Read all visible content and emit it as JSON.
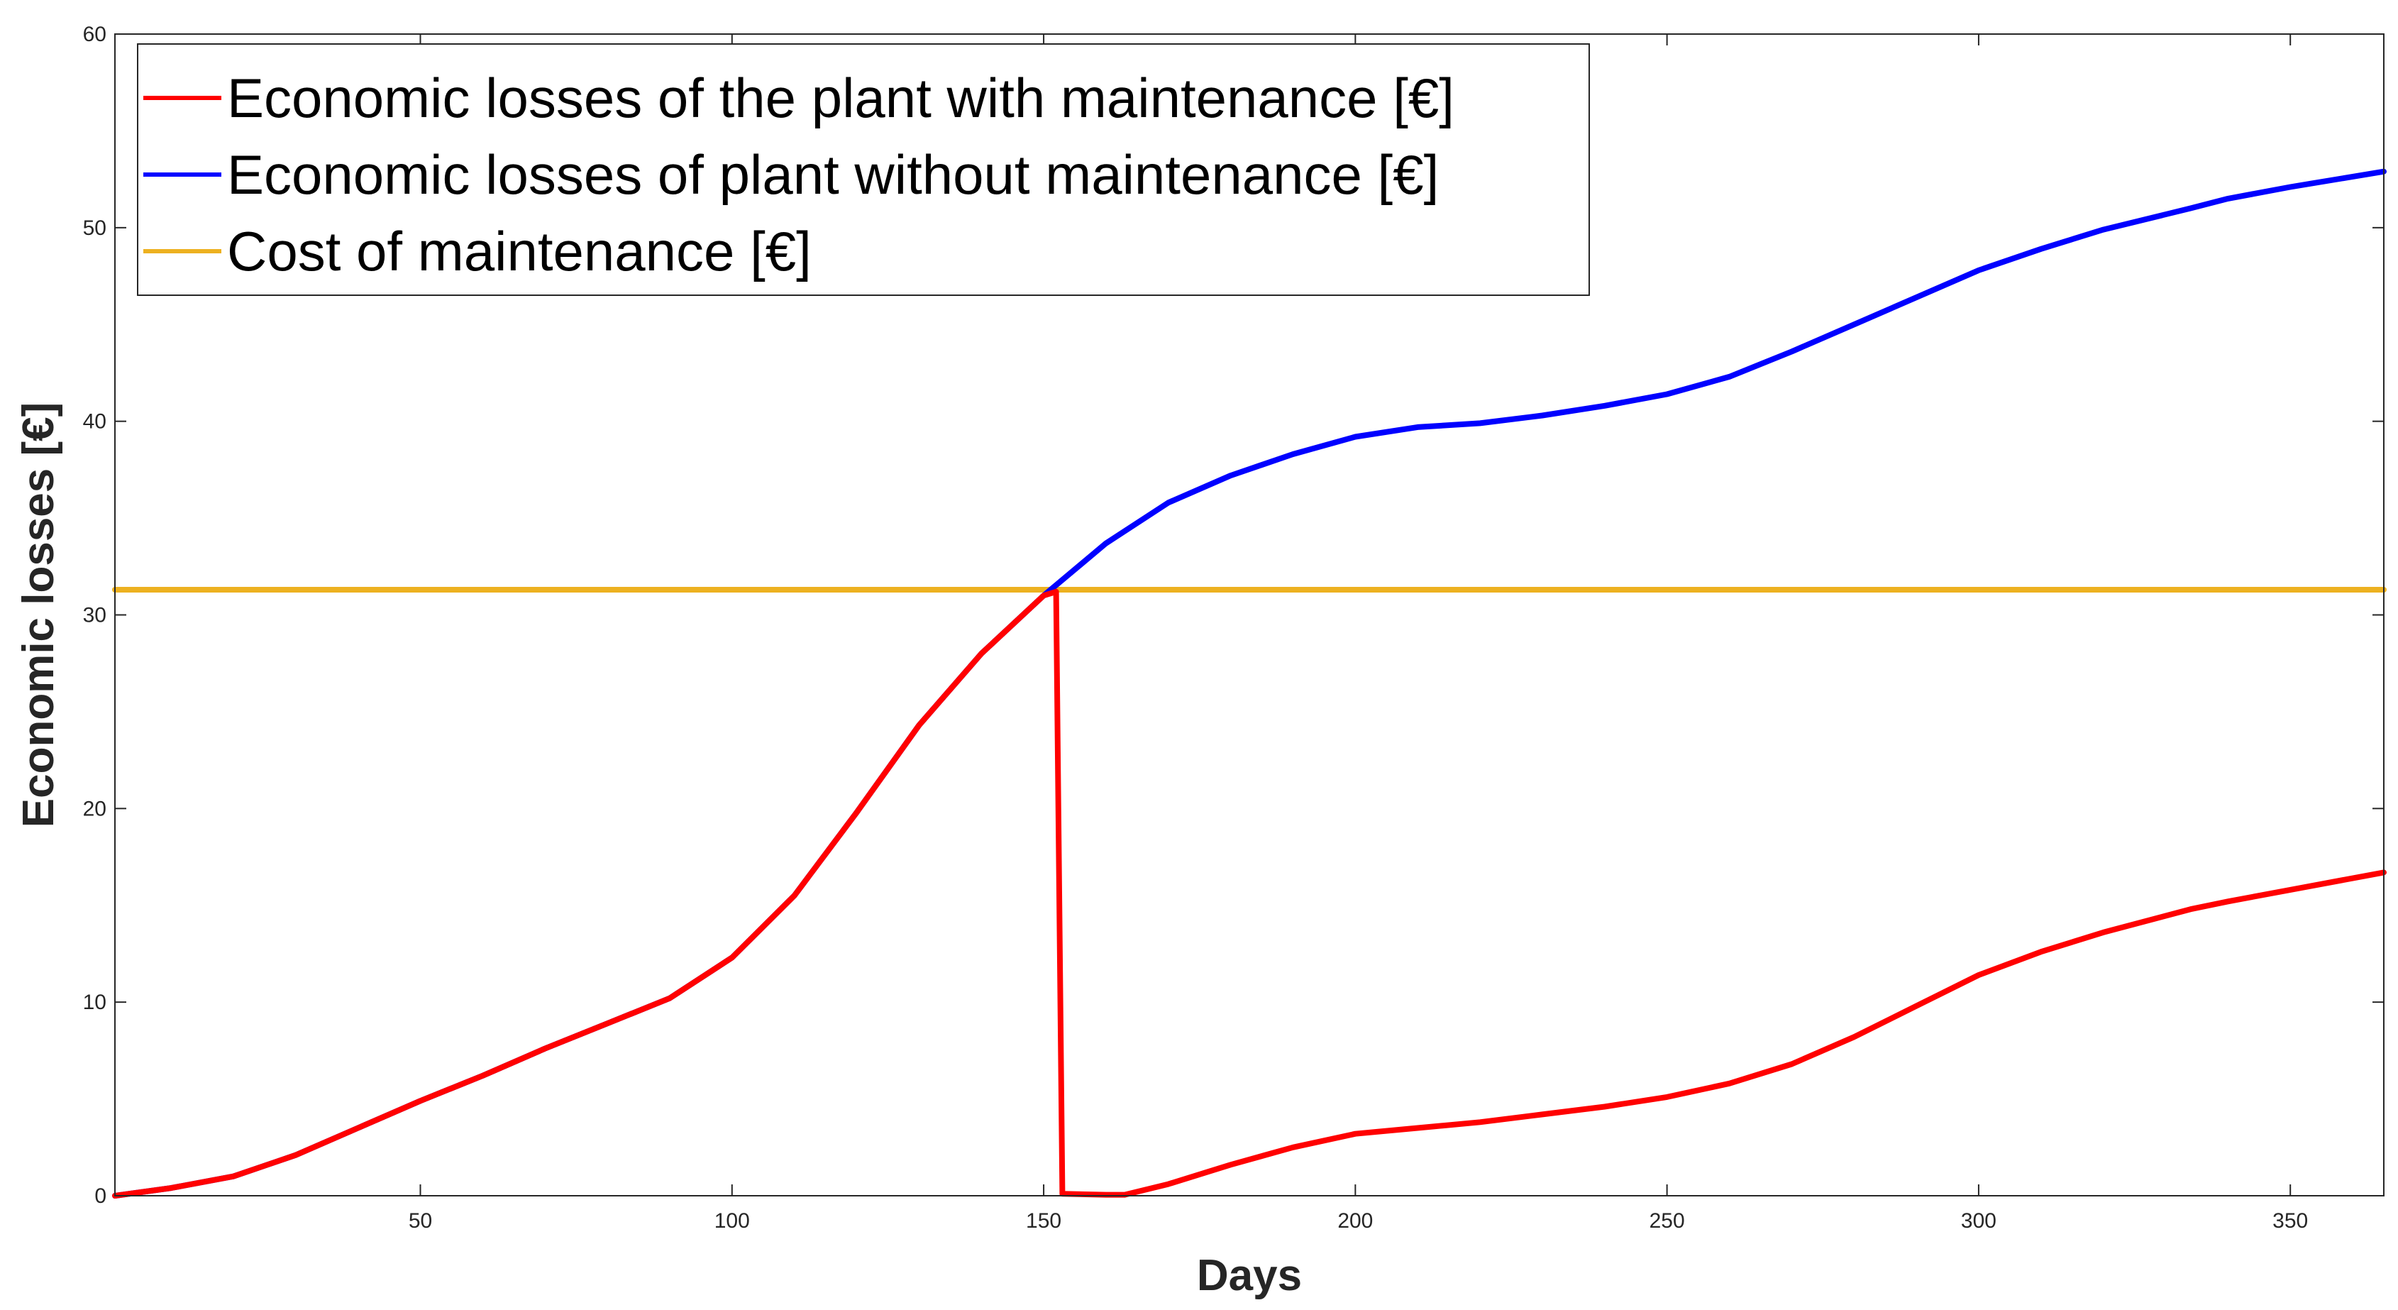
{
  "chart_data": {
    "type": "line",
    "title": "",
    "xlabel": "Days",
    "ylabel": "Economic losses [€]",
    "xlim": [
      1,
      365
    ],
    "ylim": [
      0,
      60
    ],
    "xticks": [
      50,
      100,
      150,
      200,
      250,
      300,
      350
    ],
    "yticks": [
      0,
      10,
      20,
      30,
      40,
      50,
      60
    ],
    "grid": false,
    "legend_position": "top-left",
    "series": [
      {
        "name": "Economic losses of the plant with maintenance [€]",
        "color": "#ff0000",
        "x": [
          1,
          10,
          20,
          30,
          40,
          50,
          60,
          70,
          80,
          90,
          100,
          110,
          120,
          130,
          140,
          150,
          152,
          153,
          160,
          163,
          170,
          180,
          190,
          200,
          210,
          220,
          230,
          240,
          250,
          260,
          270,
          280,
          290,
          300,
          310,
          320,
          334,
          340,
          350,
          365
        ],
        "values": [
          0,
          0.4,
          1.0,
          2.1,
          3.5,
          4.9,
          6.2,
          7.6,
          8.9,
          10.2,
          12.3,
          15.5,
          19.8,
          24.3,
          28.0,
          31.0,
          31.2,
          0.1,
          0.05,
          0.05,
          0.6,
          1.6,
          2.5,
          3.2,
          3.5,
          3.8,
          4.2,
          4.6,
          5.1,
          5.8,
          6.8,
          8.2,
          9.8,
          11.4,
          12.6,
          13.6,
          14.8,
          15.2,
          15.8,
          16.7
        ]
      },
      {
        "name": "Economic losses of plant without maintenance [€]",
        "color": "#0000ff",
        "x": [
          1,
          10,
          20,
          30,
          40,
          50,
          60,
          70,
          80,
          90,
          100,
          110,
          120,
          130,
          140,
          150,
          160,
          170,
          180,
          190,
          200,
          210,
          220,
          230,
          240,
          250,
          260,
          270,
          280,
          290,
          300,
          310,
          320,
          334,
          340,
          350,
          365
        ],
        "values": [
          0,
          0.4,
          1.0,
          2.1,
          3.5,
          4.9,
          6.2,
          7.6,
          8.9,
          10.2,
          12.3,
          15.5,
          19.8,
          24.3,
          28.0,
          31.0,
          33.7,
          35.8,
          37.2,
          38.3,
          39.2,
          39.7,
          39.9,
          40.3,
          40.8,
          41.4,
          42.3,
          43.6,
          45.0,
          46.4,
          47.8,
          48.9,
          49.9,
          51.0,
          51.5,
          52.1,
          52.9
        ]
      },
      {
        "name": "Cost of maintenance [€]",
        "color": "#edb120",
        "x": [
          1,
          365
        ],
        "values": [
          31.3,
          31.3
        ]
      }
    ]
  }
}
